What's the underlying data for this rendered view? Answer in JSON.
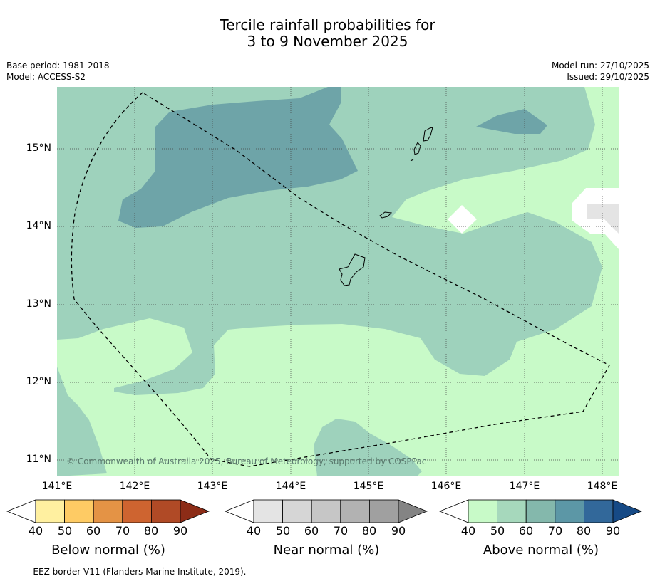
{
  "title": {
    "line1": "Tercile rainfall probabilities for",
    "line2": "3 to 9 November 2025"
  },
  "header": {
    "base_period": "Base period: 1981-2018",
    "model": "Model: ACCESS-S2",
    "model_run": "Model run: 27/10/2025",
    "issued": "Issued: 29/10/2025"
  },
  "axes": {
    "lat_labels": [
      "15°N",
      "14°N",
      "13°N",
      "12°N",
      "11°N"
    ],
    "lon_labels": [
      "141°E",
      "142°E",
      "143°E",
      "144°E",
      "145°E",
      "146°E",
      "147°E",
      "148°E"
    ]
  },
  "copyright": "© Commonwealth of Australia 2025, Bureau of Meteorology, supported by COSPPac",
  "colorbars": [
    {
      "label": "Below normal (%)",
      "ticks": [
        "40",
        "50",
        "60",
        "70",
        "80",
        "90"
      ],
      "colors": [
        "#ffffff",
        "#fff0a0",
        "#fecb64",
        "#e49345",
        "#ce6430",
        "#b04a26",
        "#8c2c17"
      ]
    },
    {
      "label": "Near normal (%)",
      "ticks": [
        "40",
        "50",
        "60",
        "70",
        "80",
        "90"
      ],
      "colors": [
        "#ffffff",
        "#e4e4e4",
        "#d6d6d6",
        "#c6c6c6",
        "#b2b2b2",
        "#a0a0a0",
        "#848484"
      ]
    },
    {
      "label": "Above normal (%)",
      "ticks": [
        "40",
        "50",
        "60",
        "70",
        "80",
        "90"
      ],
      "colors": [
        "#ffffff",
        "#c8fac8",
        "#a6d8bc",
        "#84b8ac",
        "#5c97a6",
        "#32689a",
        "#164a86"
      ]
    }
  ],
  "footer": "--  --  -- EEZ border V11 (Flanders Marine Institute, 2019).",
  "colors": {
    "above_50_60": "#c8fac8",
    "above_60_70": "#9ed2bc",
    "above_70_80": "#6ea4a8",
    "near_50_60": "#e4e4e4"
  }
}
